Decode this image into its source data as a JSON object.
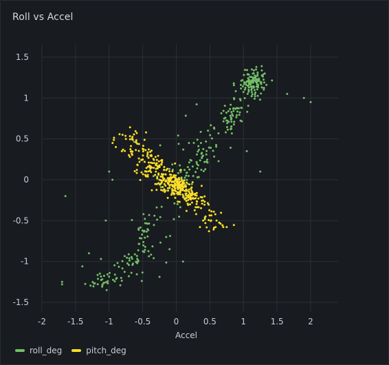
{
  "panel": {
    "title": "Roll vs Accel"
  },
  "colors": {
    "roll_deg": "#73bf69",
    "pitch_deg": "#fade2a",
    "grid": "#2c2f36",
    "axis_text": "#ccccdc"
  },
  "chart_data": {
    "type": "scatter",
    "title": "Roll vs Accel",
    "xlabel": "Accel",
    "ylabel": "",
    "xlim": [
      -2.1,
      2.4
    ],
    "ylim": [
      -1.6,
      1.65
    ],
    "x_ticks": [
      -2,
      -1.5,
      -1,
      -0.5,
      0,
      0.5,
      1,
      1.5,
      2
    ],
    "x_tick_labels": [
      "-2",
      "-1.5",
      "-1",
      "-0.5",
      "0",
      "0.5",
      "1",
      "1.5",
      "2"
    ],
    "y_ticks": [
      1.5,
      1,
      0.5,
      0,
      -0.5,
      -1,
      -1.5
    ],
    "y_tick_labels": [
      "1.5",
      "1",
      "0.5",
      "0",
      "-0.5",
      "-1",
      "-1.5"
    ],
    "grid": true,
    "legend": "bottom-left",
    "series": [
      {
        "name": "roll_deg",
        "color": "#73bf69",
        "clusters": [
          {
            "cx": 1.15,
            "cy": 1.2,
            "sx": 0.1,
            "sy": 0.08,
            "n": 120,
            "r": 0.15
          },
          {
            "cx": 0.85,
            "cy": 0.8,
            "sx": 0.14,
            "sy": 0.14,
            "n": 60,
            "r": 0.6
          },
          {
            "cx": 0.3,
            "cy": 0.25,
            "sx": 0.18,
            "sy": 0.15,
            "n": 55,
            "r": 0.6
          },
          {
            "cx": 0.0,
            "cy": 0.0,
            "sx": 0.3,
            "sy": 0.35,
            "n": 45,
            "r": 0.3
          },
          {
            "cx": -0.45,
            "cy": -0.65,
            "sx": 0.12,
            "sy": 0.15,
            "n": 35,
            "r": 0.5
          },
          {
            "cx": -0.75,
            "cy": -1.05,
            "sx": 0.25,
            "sy": 0.12,
            "n": 45,
            "r": 0.5
          },
          {
            "cx": -1.1,
            "cy": -1.25,
            "sx": 0.12,
            "sy": 0.05,
            "n": 30,
            "r": 0.3
          }
        ],
        "extra_points": [
          [
            1.9,
            1.0
          ],
          [
            2.0,
            0.95
          ],
          [
            1.65,
            1.05
          ],
          [
            -1.65,
            -0.2
          ],
          [
            -1.7,
            -1.25
          ],
          [
            -1.7,
            -1.28
          ],
          [
            -1.3,
            -0.9
          ],
          [
            -1.0,
            0.1
          ],
          [
            -0.95,
            0.0
          ],
          [
            1.05,
            0.35
          ],
          [
            -0.1,
            -0.85
          ],
          [
            0.1,
            -1.0
          ],
          [
            -0.15,
            -0.7
          ],
          [
            -1.05,
            -0.5
          ],
          [
            1.25,
            0.1
          ]
        ]
      },
      {
        "name": "pitch_deg",
        "color": "#fade2a",
        "clusters": [
          {
            "cx": 0.0,
            "cy": -0.08,
            "sx": 0.12,
            "sy": 0.08,
            "n": 160,
            "r": -0.5
          },
          {
            "cx": -0.3,
            "cy": 0.12,
            "sx": 0.14,
            "sy": 0.1,
            "n": 90,
            "r": -0.4
          },
          {
            "cx": 0.2,
            "cy": -0.2,
            "sx": 0.13,
            "sy": 0.08,
            "n": 80,
            "r": -0.4
          },
          {
            "cx": -0.6,
            "cy": 0.35,
            "sx": 0.15,
            "sy": 0.12,
            "n": 55,
            "r": -0.3
          },
          {
            "cx": 0.5,
            "cy": -0.45,
            "sx": 0.12,
            "sy": 0.08,
            "n": 25,
            "r": -0.2
          }
        ],
        "extra_points": [
          [
            -0.8,
            0.55
          ],
          [
            -0.75,
            0.5
          ],
          [
            -0.45,
            0.58
          ],
          [
            0.7,
            -0.58
          ],
          [
            0.75,
            -0.58
          ],
          [
            0.6,
            -0.5
          ],
          [
            0.4,
            -0.5
          ],
          [
            -0.9,
            0.4
          ]
        ]
      }
    ]
  }
}
